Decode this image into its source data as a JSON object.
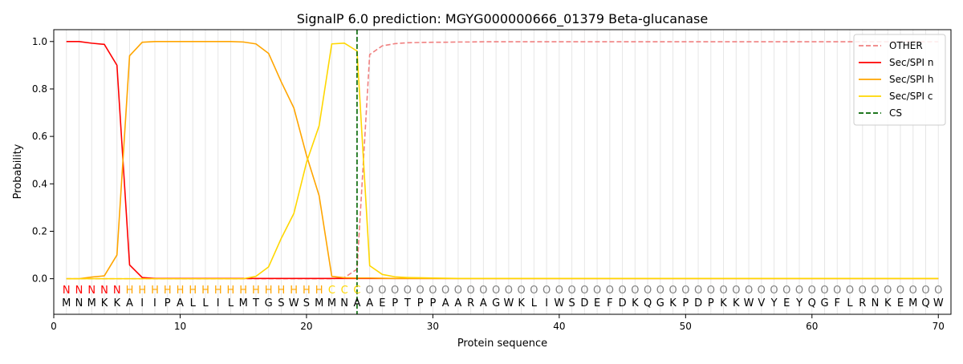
{
  "chart_data": {
    "type": "line",
    "title": "SignalP 6.0 prediction: MGYG000000666_01379 Beta-glucanase",
    "xlabel": "Protein sequence",
    "ylabel": "Probability",
    "xlim": [
      0,
      71
    ],
    "ylim": [
      -0.15,
      1.05
    ],
    "xticks": [
      0,
      10,
      20,
      30,
      40,
      50,
      60,
      70
    ],
    "yticks": [
      0.0,
      0.2,
      0.4,
      0.6,
      0.8,
      1.0
    ],
    "legend_position": "top-right",
    "sequence": "MNMKKAIIPALLILMTGSWSMMNAAEPTPPAARAGWKLIWSDEFDKQGKPDPKKWVYEYQGFLRNKEMQW",
    "labels": "NNNNNHHHHHHHHHHHHHHHHCCCOOOOOOOOOOOOOOOOOOOOOOOOOOOOOOOOOOOOOOOOOOOOOOO",
    "label_colors": {
      "N": "#ff0000",
      "H": "#ffa500",
      "C": "#ffd700",
      "O": "#808080"
    },
    "cleavage_site": 24,
    "series": [
      {
        "name": "OTHER",
        "color": "#f08080",
        "dash": true,
        "values": [
          0,
          0,
          0,
          0,
          0,
          0,
          0,
          0,
          0,
          0,
          0,
          0,
          0,
          0,
          0,
          0,
          0,
          0,
          0,
          0,
          0,
          0,
          0.005,
          0.04,
          0.945,
          0.982,
          0.991,
          0.995,
          0.996,
          0.997,
          0.997,
          0.998,
          0.998,
          0.999,
          0.999,
          0.999,
          0.999,
          0.999,
          0.999,
          0.999,
          0.999,
          0.999,
          0.999,
          0.999,
          0.999,
          0.999,
          0.999,
          0.999,
          0.999,
          0.999,
          0.999,
          0.999,
          0.999,
          0.999,
          0.999,
          0.999,
          0.999,
          0.999,
          0.999,
          0.999,
          0.999,
          0.999,
          0.999,
          0.999,
          0.999,
          0.999,
          0.999,
          0.999,
          0.999,
          0.999
        ]
      },
      {
        "name": "Sec/SPI n",
        "color": "#ff0000",
        "dash": false,
        "values": [
          1.0,
          1.0,
          0.993,
          0.988,
          0.9,
          0.058,
          0.005,
          0.001,
          0.001,
          0.001,
          0.001,
          0.001,
          0.001,
          0.001,
          0.001,
          0.001,
          0.001,
          0.001,
          0.001,
          0.001,
          0.001,
          0.001,
          0.001,
          0.001,
          0.001,
          0.001,
          0.001,
          0.001,
          0.001,
          0.001,
          0.001,
          0.001,
          0.001,
          0.001,
          0.001,
          0.001,
          0.001,
          0.001,
          0.001,
          0.001,
          0.001,
          0.001,
          0.001,
          0.001,
          0.001,
          0.001,
          0.001,
          0.001,
          0.001,
          0.001,
          0.001,
          0.001,
          0.001,
          0.001,
          0.001,
          0.001,
          0.001,
          0.001,
          0.001,
          0.001,
          0.001,
          0.001,
          0.001,
          0.001,
          0.001,
          0.001,
          0.001,
          0.001,
          0.001,
          0.001
        ]
      },
      {
        "name": "Sec/SPI h",
        "color": "#ffa500",
        "dash": false,
        "values": [
          0,
          0,
          0.007,
          0.012,
          0.1,
          0.94,
          0.997,
          1.0,
          1.0,
          1.0,
          1.0,
          1.0,
          1.0,
          1.0,
          0.998,
          0.99,
          0.95,
          0.83,
          0.72,
          0.52,
          0.35,
          0.01,
          0.004,
          0.003,
          0.003,
          0.002,
          0.001,
          0.001,
          0.001,
          0.001,
          0.001,
          0.001,
          0.001,
          0.001,
          0.001,
          0.001,
          0.001,
          0.001,
          0.001,
          0.001,
          0.001,
          0.001,
          0.001,
          0.001,
          0.001,
          0.001,
          0.001,
          0.001,
          0.001,
          0.001,
          0.001,
          0.001,
          0.001,
          0.001,
          0.001,
          0.001,
          0.001,
          0.001,
          0.001,
          0.001,
          0.001,
          0.001,
          0.001,
          0.001,
          0.001,
          0.001,
          0.001,
          0.001,
          0.001,
          0.001
        ]
      },
      {
        "name": "Sec/SPI c",
        "color": "#ffd700",
        "dash": false,
        "values": [
          0,
          0,
          0,
          0,
          0,
          0,
          0,
          0,
          0,
          0,
          0,
          0,
          0,
          0,
          0,
          0.01,
          0.05,
          0.17,
          0.275,
          0.49,
          0.645,
          0.99,
          0.993,
          0.96,
          0.055,
          0.018,
          0.008,
          0.005,
          0.004,
          0.003,
          0.002,
          0.001,
          0.001,
          0.001,
          0.001,
          0.001,
          0.001,
          0.001,
          0.001,
          0.001,
          0.001,
          0.001,
          0.001,
          0.001,
          0.001,
          0.001,
          0.001,
          0.001,
          0.001,
          0.001,
          0.001,
          0.001,
          0.001,
          0.001,
          0.001,
          0.001,
          0.001,
          0.001,
          0.001,
          0.001,
          0.001,
          0.001,
          0.001,
          0.001,
          0.001,
          0.001,
          0.001,
          0.001,
          0.001,
          0.001
        ]
      }
    ],
    "legend": [
      {
        "name": "OTHER",
        "color": "#f08080",
        "dash": true
      },
      {
        "name": "Sec/SPI n",
        "color": "#ff0000",
        "dash": false
      },
      {
        "name": "Sec/SPI h",
        "color": "#ffa500",
        "dash": false
      },
      {
        "name": "Sec/SPI c",
        "color": "#ffd700",
        "dash": false
      },
      {
        "name": "CS",
        "color": "#006400",
        "dash": true
      }
    ]
  }
}
